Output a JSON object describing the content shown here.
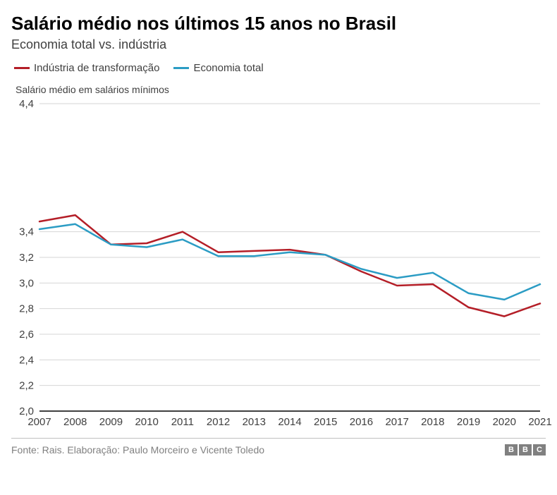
{
  "title": "Salário médio nos últimos 15 anos no Brasil",
  "subtitle": "Economia total vs. indústria",
  "y_axis_label": "Salário médio em salários mínimos",
  "source": "Fonte: Rais. Elaboração: Paulo Morceiro e Vicente Toledo",
  "logo": {
    "letters": [
      "B",
      "B",
      "C"
    ]
  },
  "chart": {
    "type": "line",
    "background_color": "#ffffff",
    "grid_color": "#d6d6d6",
    "axis_color": "#000000",
    "axis_label_color": "#404040",
    "axis_label_fontsize": 15,
    "line_width": 2.5,
    "y": {
      "min": 2.0,
      "max": 4.4,
      "ticks": [
        2.0,
        2.2,
        2.4,
        2.6,
        2.8,
        3.0,
        3.2,
        3.4,
        4.4
      ],
      "tick_labels": [
        "2,0",
        "2,2",
        "2,4",
        "2,6",
        "2,8",
        "3,0",
        "3,2",
        "3,4",
        "4,4"
      ]
    },
    "x": {
      "categories": [
        "2007",
        "2008",
        "2009",
        "2010",
        "2011",
        "2012",
        "2013",
        "2014",
        "2015",
        "2016",
        "2017",
        "2018",
        "2019",
        "2020",
        "2021"
      ]
    },
    "series": [
      {
        "key": "industria",
        "label": "Indústria de transformação",
        "color": "#b41e27",
        "values": [
          3.48,
          3.53,
          3.3,
          3.31,
          3.4,
          3.24,
          3.25,
          3.26,
          3.22,
          3.09,
          2.98,
          2.99,
          2.81,
          2.74,
          2.84
        ]
      },
      {
        "key": "economia",
        "label": "Economia total",
        "color": "#2b9cc4",
        "values": [
          3.42,
          3.46,
          3.3,
          3.28,
          3.34,
          3.21,
          3.21,
          3.24,
          3.22,
          3.11,
          3.04,
          3.08,
          2.92,
          2.87,
          2.99
        ]
      }
    ]
  }
}
